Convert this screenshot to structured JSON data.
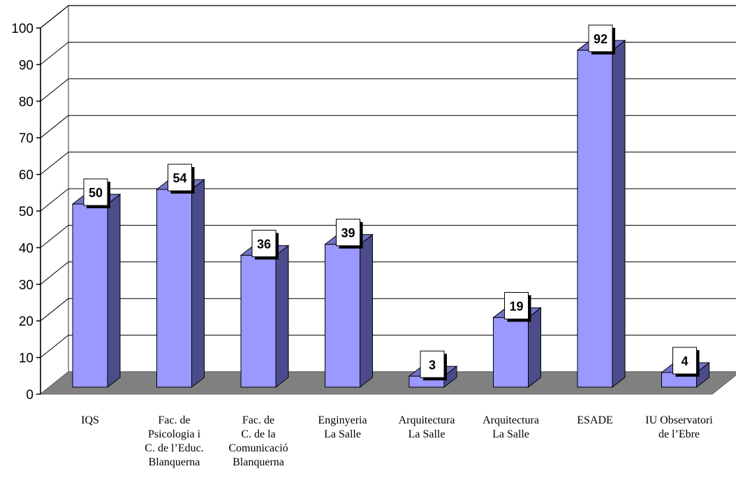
{
  "chart_data": {
    "type": "bar",
    "categories": [
      [
        "IQS"
      ],
      [
        "Fac. de",
        "Psicologia i",
        "C.  de l’Educ.",
        "Blanquerna"
      ],
      [
        "Fac. de",
        "C.  de la",
        "Comunicació",
        "Blanquerna"
      ],
      [
        "Enginyeria",
        "La Salle"
      ],
      [
        "Arquitectura",
        "La Salle"
      ],
      [
        "Arquitectura",
        "La Salle"
      ],
      [
        "ESADE"
      ],
      [
        "IU Observatori",
        "de l’Ebre"
      ]
    ],
    "values": [
      50,
      54,
      36,
      39,
      3,
      19,
      92,
      4
    ],
    "ylim": [
      0,
      100
    ],
    "yticks": [
      0,
      10,
      20,
      30,
      40,
      50,
      60,
      70,
      80,
      90,
      100
    ],
    "grid": true,
    "three_d": true,
    "colors": {
      "bar_front": "#9999ff",
      "bar_side": "#4c4c8c",
      "bar_top": "#7373c8",
      "floor": "#808080",
      "wall": "#ffffff",
      "grid": "#000000",
      "label_box": "#ffffff"
    }
  }
}
